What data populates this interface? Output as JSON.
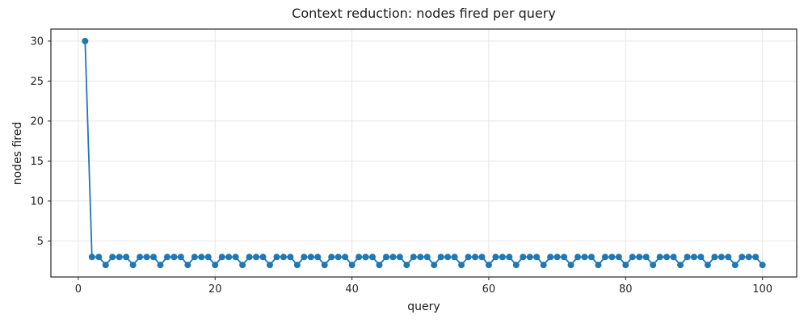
{
  "figure": {
    "title": "Context reduction: nodes fired per query",
    "xlabel": "query",
    "ylabel": "nodes fired"
  },
  "chart_data": {
    "type": "line",
    "title": "Context reduction: nodes fired per query",
    "xlabel": "query",
    "ylabel": "nodes fired",
    "x": [
      1,
      2,
      3,
      4,
      5,
      6,
      7,
      8,
      9,
      10,
      11,
      12,
      13,
      14,
      15,
      16,
      17,
      18,
      19,
      20,
      21,
      22,
      23,
      24,
      25,
      26,
      27,
      28,
      29,
      30,
      31,
      32,
      33,
      34,
      35,
      36,
      37,
      38,
      39,
      40,
      41,
      42,
      43,
      44,
      45,
      46,
      47,
      48,
      49,
      50,
      51,
      52,
      53,
      54,
      55,
      56,
      57,
      58,
      59,
      60,
      61,
      62,
      63,
      64,
      65,
      66,
      67,
      68,
      69,
      70,
      71,
      72,
      73,
      74,
      75,
      76,
      77,
      78,
      79,
      80,
      81,
      82,
      83,
      84,
      85,
      86,
      87,
      88,
      89,
      90,
      91,
      92,
      93,
      94,
      95,
      96,
      97,
      98,
      99,
      100
    ],
    "y": [
      30,
      3,
      3,
      2,
      3,
      3,
      3,
      2,
      3,
      3,
      3,
      2,
      3,
      3,
      3,
      2,
      3,
      3,
      3,
      2,
      3,
      3,
      3,
      2,
      3,
      3,
      3,
      2,
      3,
      3,
      3,
      2,
      3,
      3,
      3,
      2,
      3,
      3,
      3,
      2,
      3,
      3,
      3,
      2,
      3,
      3,
      3,
      2,
      3,
      3,
      3,
      2,
      3,
      3,
      3,
      2,
      3,
      3,
      3,
      2,
      3,
      3,
      3,
      2,
      3,
      3,
      3,
      2,
      3,
      3,
      3,
      2,
      3,
      3,
      3,
      2,
      3,
      3,
      3,
      2,
      3,
      3,
      3,
      2,
      3,
      3,
      3,
      2,
      3,
      3,
      3,
      2,
      3,
      3,
      3,
      2,
      3,
      3,
      3,
      2
    ],
    "xlim": [
      -4,
      105
    ],
    "ylim": [
      0.5,
      31.5
    ],
    "xticks": [
      0,
      20,
      40,
      60,
      80,
      100
    ],
    "yticks": [
      5,
      10,
      15,
      20,
      25,
      30
    ],
    "grid": true,
    "legend_position": "none",
    "line_color": "#1f77b4",
    "marker": "circle",
    "marker_color": "#1f77b4",
    "grid_color": "#e6e6e6",
    "spine_color": "#262626",
    "tick_label_color": "#262626"
  }
}
